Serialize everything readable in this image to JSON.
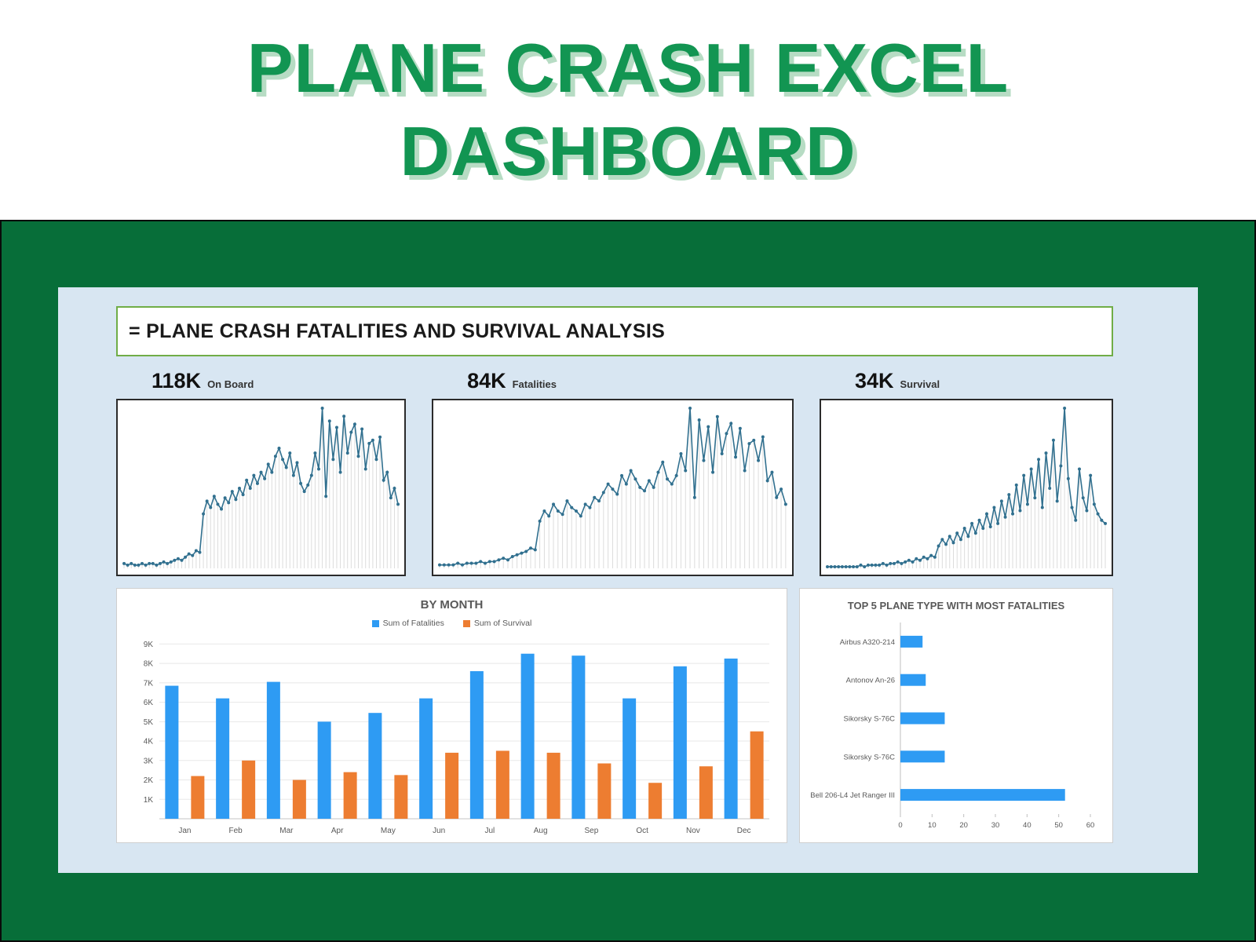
{
  "title": {
    "line1": "PLANE CRASH EXCEL",
    "line2": "DASHBOARD"
  },
  "dashboard": {
    "header_title": "= PLANE CRASH FATALITIES AND SURVIVAL ANALYSIS",
    "kpis": [
      {
        "value": "118K",
        "label": "On Board"
      },
      {
        "value": "84K",
        "label": "Fatalities"
      },
      {
        "value": "34K",
        "label": "Survival"
      }
    ]
  },
  "colors": {
    "title_green": "#129552",
    "background_green": "#076e39",
    "panel_blue": "#d8e6f2",
    "header_border_green": "#70ad47",
    "sparkline_teal": "#31708f",
    "bar_blue": "#2e9bf3",
    "bar_orange": "#ed7d31"
  },
  "chart_data": [
    {
      "id": "onboard_trend",
      "type": "line",
      "title": "On Board trend sparkline",
      "kpi_value": "118K",
      "line_color": "#31708f",
      "values": [
        3,
        2,
        3,
        2,
        2,
        3,
        2,
        3,
        3,
        2,
        3,
        4,
        3,
        4,
        5,
        6,
        5,
        7,
        9,
        8,
        11,
        10,
        34,
        42,
        38,
        45,
        40,
        37,
        44,
        41,
        48,
        43,
        50,
        46,
        55,
        50,
        58,
        53,
        60,
        56,
        65,
        60,
        70,
        75,
        68,
        63,
        72,
        58,
        66,
        53,
        48,
        52,
        58,
        72,
        62,
        100,
        45,
        92,
        68,
        88,
        60,
        95,
        72,
        85,
        90,
        70,
        87,
        62,
        78,
        80,
        68,
        82,
        55,
        60,
        44,
        50,
        40
      ]
    },
    {
      "id": "fatalities_trend",
      "type": "line",
      "title": "Fatalities trend sparkline",
      "kpi_value": "84K",
      "line_color": "#31708f",
      "values": [
        2,
        2,
        2,
        2,
        3,
        2,
        3,
        3,
        3,
        4,
        3,
        4,
        4,
        5,
        6,
        5,
        7,
        8,
        9,
        10,
        12,
        11,
        28,
        34,
        31,
        38,
        34,
        32,
        40,
        36,
        34,
        31,
        38,
        36,
        42,
        40,
        45,
        50,
        47,
        44,
        55,
        50,
        58,
        53,
        48,
        46,
        52,
        48,
        57,
        63,
        53,
        50,
        55,
        68,
        58,
        95,
        42,
        88,
        64,
        84,
        57,
        90,
        68,
        80,
        86,
        66,
        83,
        58,
        74,
        76,
        64,
        78,
        52,
        57,
        42,
        47,
        38
      ]
    },
    {
      "id": "survival_trend",
      "type": "line",
      "title": "Survival trend sparkline",
      "kpi_value": "34K",
      "line_color": "#31708f",
      "values": [
        1,
        1,
        1,
        1,
        1,
        1,
        1,
        1,
        1,
        2,
        1,
        2,
        2,
        2,
        2,
        3,
        2,
        3,
        3,
        4,
        3,
        4,
        5,
        4,
        6,
        5,
        7,
        6,
        8,
        7,
        14,
        18,
        15,
        20,
        16,
        22,
        18,
        25,
        20,
        28,
        22,
        30,
        25,
        34,
        26,
        38,
        28,
        42,
        32,
        46,
        34,
        52,
        36,
        58,
        40,
        62,
        44,
        68,
        38,
        72,
        50,
        80,
        42,
        64,
        100,
        56,
        38,
        30,
        62,
        44,
        36,
        58,
        40,
        34,
        30,
        28
      ]
    },
    {
      "id": "by_month",
      "type": "bar",
      "title": "BY MONTH",
      "categories": [
        "Jan",
        "Feb",
        "Mar",
        "Apr",
        "May",
        "Jun",
        "Jul",
        "Aug",
        "Sep",
        "Oct",
        "Nov",
        "Dec"
      ],
      "series": [
        {
          "name": "Sum of Fatalities",
          "color": "#2e9bf3",
          "values": [
            6850,
            6200,
            7050,
            5000,
            5450,
            6200,
            7600,
            8500,
            8400,
            6200,
            7850,
            8250
          ]
        },
        {
          "name": "Sum of Survival",
          "color": "#ed7d31",
          "values": [
            2200,
            3000,
            2000,
            2400,
            2250,
            3400,
            3500,
            3400,
            2850,
            1850,
            2700,
            4500
          ]
        }
      ],
      "ylim": [
        0,
        9500
      ],
      "ytick_values": [
        1000,
        2000,
        3000,
        4000,
        5000,
        6000,
        7000,
        8000,
        9000
      ],
      "ytick_labels": [
        "1K",
        "2K",
        "3K",
        "4K",
        "5K",
        "6K",
        "7K",
        "8K",
        "9K"
      ],
      "grid": true,
      "legend_position": "top"
    },
    {
      "id": "top5_fatalities",
      "type": "bar",
      "orientation": "horizontal",
      "title": "TOP 5 PLANE TYPE WITH MOST FATALITIES",
      "categories": [
        "Airbus A320-214",
        "Antonov An-26",
        "Sikorsky S-76C",
        "Sikorsky S-76C",
        "Bell 206-L4 Jet Ranger III"
      ],
      "values": [
        7,
        8,
        14,
        14,
        52
      ],
      "bar_color": "#2e9bf3",
      "xlim": [
        0,
        60
      ],
      "xticks": [
        0,
        10,
        20,
        30,
        40,
        50,
        60
      ],
      "grid": false
    }
  ]
}
